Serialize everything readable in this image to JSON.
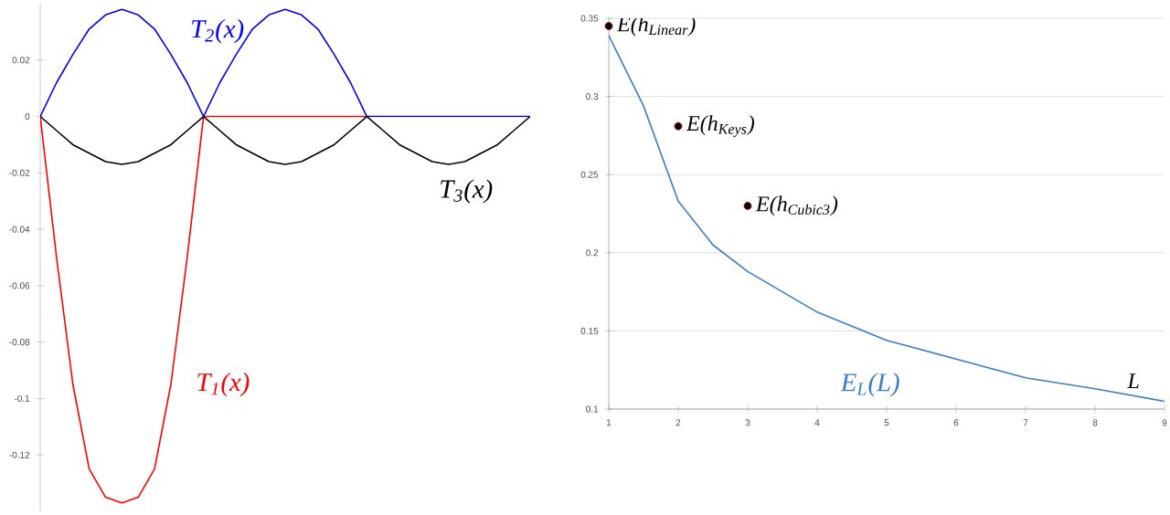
{
  "chart_data": [
    {
      "type": "line",
      "ylim": [
        -0.14,
        0.04
      ],
      "categories": [
        null,
        null,
        null,
        null,
        null,
        null,
        null,
        null,
        null,
        null,
        null,
        null,
        null,
        null,
        null,
        null,
        null,
        null,
        null,
        null,
        null,
        null,
        null,
        null,
        null,
        null,
        null,
        null,
        null,
        null,
        null
      ],
      "yticks": [
        -0.12,
        -0.1,
        -0.08,
        -0.06,
        -0.04,
        -0.02,
        0,
        0.02
      ],
      "series": [
        {
          "name": "T$_{1}$(x)",
          "color": "#ff0000",
          "values": [
            0,
            -0.05,
            -0.095,
            -0.125,
            -0.135,
            -0.137,
            -0.135,
            -0.125,
            -0.095,
            -0.05,
            0,
            0,
            0,
            0,
            0,
            0,
            0,
            0,
            0,
            0,
            0,
            null,
            null,
            null,
            null,
            null,
            null,
            null,
            null,
            null,
            null
          ]
        },
        {
          "name": "T$_{2}$(x)",
          "color": "#0000ff",
          "values": [
            0,
            0.012,
            0.022,
            0.031,
            0.036,
            0.038,
            0.036,
            0.031,
            0.022,
            0.012,
            0,
            0.012,
            0.022,
            0.031,
            0.036,
            0.038,
            0.036,
            0.031,
            0.022,
            0.012,
            0,
            0,
            0,
            0,
            0,
            0,
            0,
            0,
            0,
            0,
            0
          ]
        },
        {
          "name": "T$_{3}$(x)",
          "color": "#000000",
          "values": [
            0,
            -0.005,
            -0.01,
            -0.013,
            -0.016,
            -0.017,
            -0.016,
            -0.013,
            -0.01,
            -0.005,
            0,
            -0.005,
            -0.01,
            -0.013,
            -0.016,
            -0.017,
            -0.016,
            -0.013,
            -0.01,
            -0.005,
            0,
            -0.005,
            -0.01,
            -0.013,
            -0.016,
            -0.017,
            -0.016,
            -0.013,
            -0.01,
            -0.005,
            0
          ]
        }
      ]
    },
    {
      "type": "line",
      "xlabel": "L",
      "xlim": [
        1,
        9
      ],
      "ylim": [
        0.1,
        0.35
      ],
      "xticks": [
        1,
        2,
        3,
        4,
        5,
        6,
        7,
        8,
        9
      ],
      "yticks": [
        0.1,
        0.15,
        0.2,
        0.25,
        0.3,
        0.35
      ],
      "grid": "y",
      "series": [
        {
          "name": "E$_{L}$(L)",
          "color": "#3a7dc9",
          "x": [
            1,
            1.5,
            2,
            2.5,
            3,
            4,
            5,
            6,
            7,
            8,
            9
          ],
          "values": [
            0.339,
            0.294,
            0.233,
            0.205,
            0.188,
            0.162,
            0.144,
            0.132,
            0.12,
            0.113,
            0.105
          ]
        },
        {
          "type": "scatter",
          "marker": "circle",
          "color": "#000000",
          "x": [
            1,
            2,
            3
          ],
          "values": [
            0.345,
            0.281,
            0.23
          ]
        }
      ],
      "annotations": [
        {
          "text": "E(h$_{Linear}$)",
          "x": 1,
          "y": 0.345
        },
        {
          "text": "E(h$_{Keys}$)",
          "x": 2,
          "y": 0.281
        },
        {
          "text": "E(h$_{Cubic3}$)",
          "x": 3,
          "y": 0.23
        }
      ]
    }
  ]
}
